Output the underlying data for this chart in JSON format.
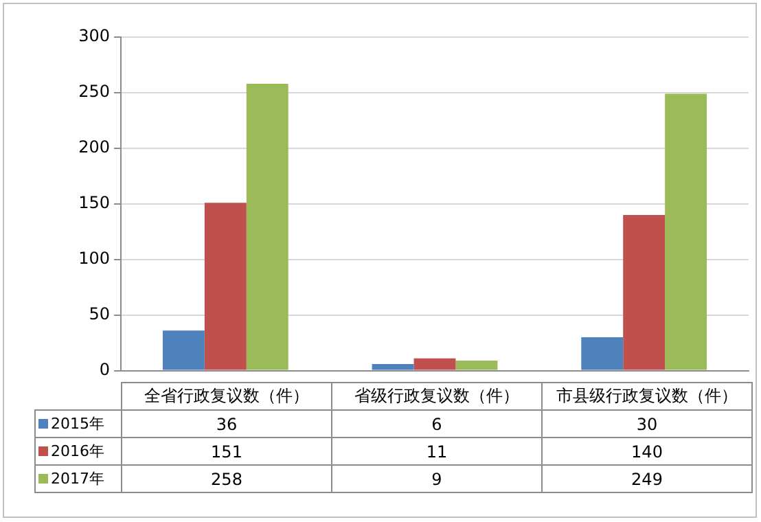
{
  "chart_data": {
    "type": "bar",
    "categories": [
      "全省行政复议数（件）",
      "省级行政复议数（件）",
      "市县级行政复议数（件）"
    ],
    "series": [
      {
        "name": "2015年",
        "color": "#4f81bd",
        "values": [
          36,
          6,
          30
        ]
      },
      {
        "name": "2016年",
        "color": "#c0504d",
        "values": [
          151,
          11,
          140
        ]
      },
      {
        "name": "2017年",
        "color": "#9bbb59",
        "values": [
          258,
          9,
          249
        ]
      }
    ],
    "ylim": [
      0,
      300
    ],
    "yticks": [
      0,
      50,
      100,
      150,
      200,
      250,
      300
    ],
    "grid": "y",
    "legend": "bottom",
    "data_labels": true
  }
}
